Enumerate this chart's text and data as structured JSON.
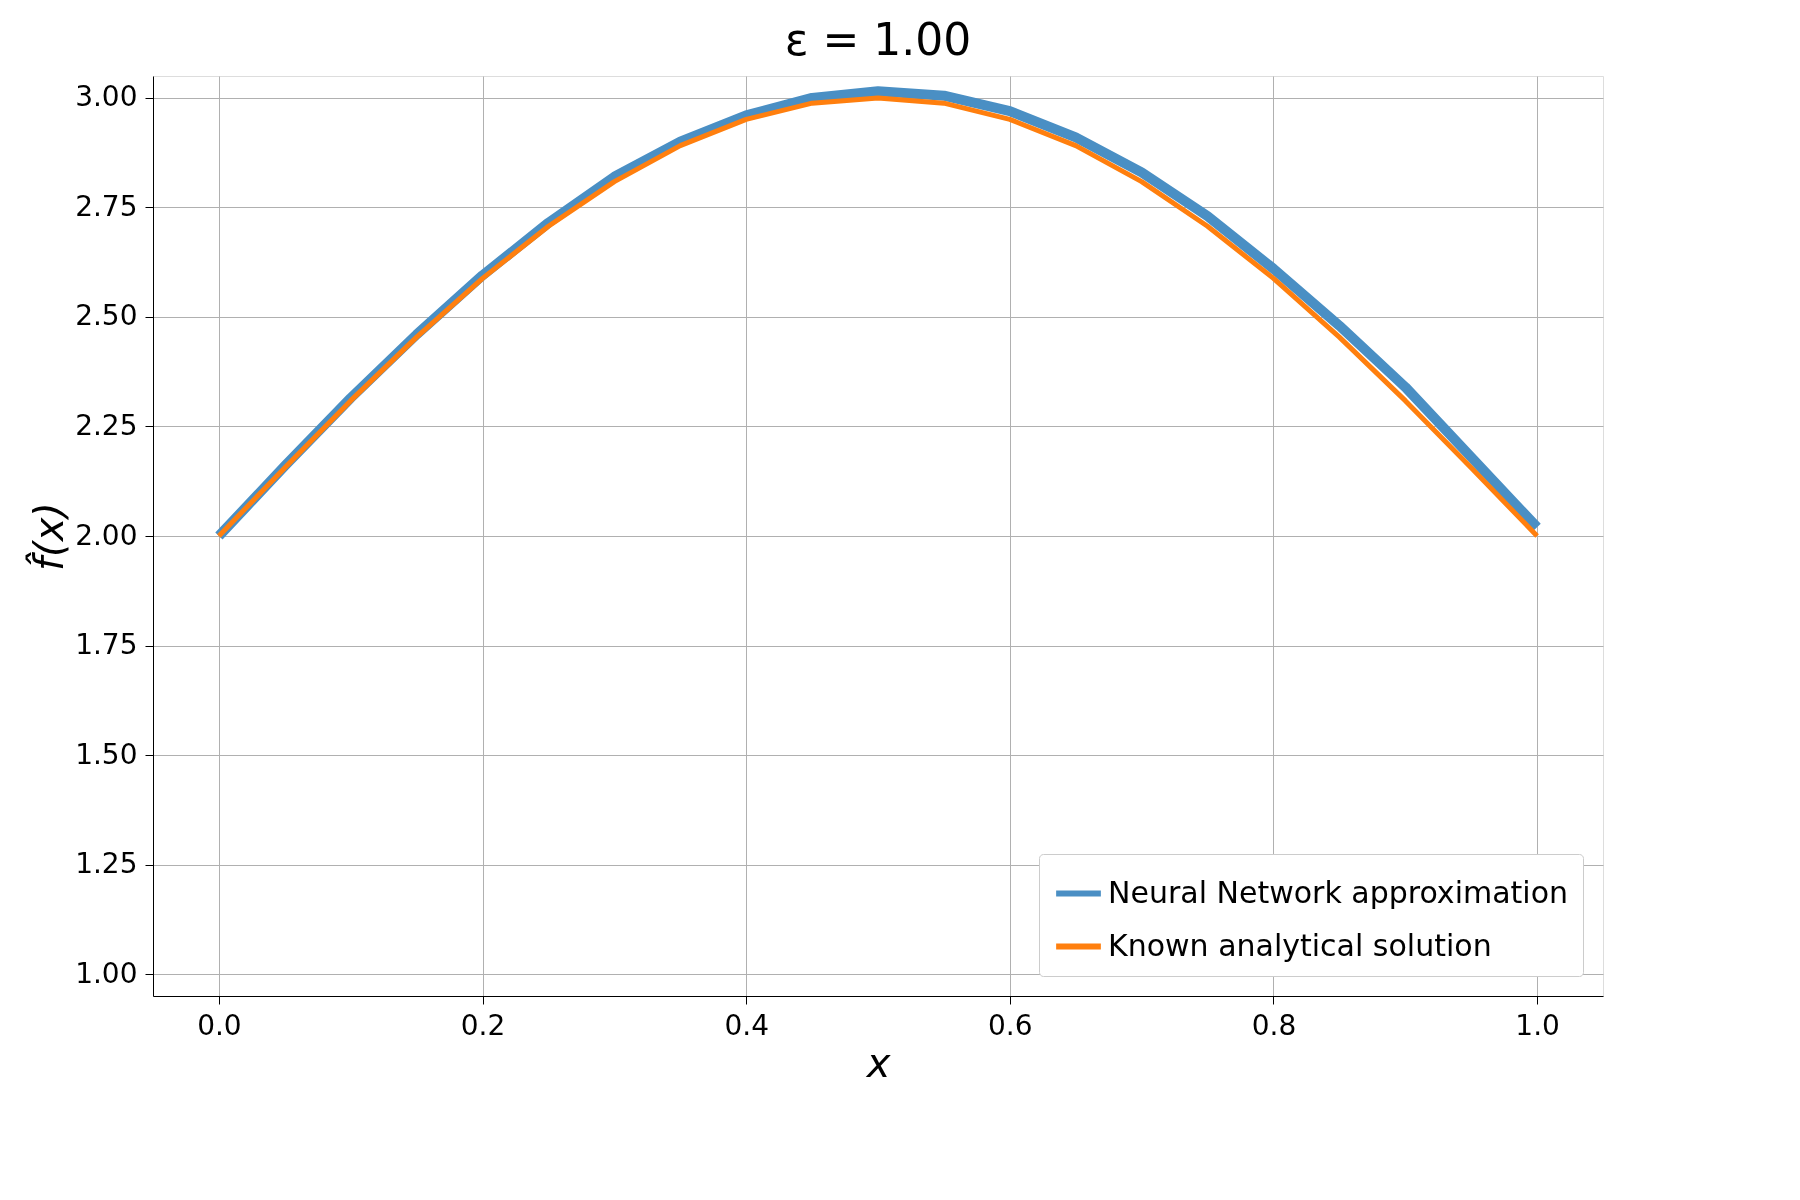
{
  "chart_data": {
    "type": "line",
    "title": "ε = 1.00",
    "xlabel": "x",
    "ylabel": "f̂(x)",
    "x": [
      0,
      0.05,
      0.1,
      0.15,
      0.2,
      0.25,
      0.3,
      0.35,
      0.4,
      0.45,
      0.5,
      0.55,
      0.6,
      0.65,
      0.7,
      0.75,
      0.8,
      0.85,
      0.9,
      0.95,
      1.0
    ],
    "series": [
      {
        "name": "Neural Network approximation",
        "color": "#4a8fc4",
        "values": [
          2.0,
          2.16,
          2.315,
          2.46,
          2.595,
          2.715,
          2.82,
          2.9,
          2.96,
          3.0,
          3.015,
          3.005,
          2.97,
          2.91,
          2.83,
          2.73,
          2.61,
          2.48,
          2.34,
          2.18,
          2.02
        ]
      },
      {
        "name": "Known analytical solution",
        "color": "#ff7f0e",
        "values": [
          2.0,
          2.156,
          2.309,
          2.454,
          2.588,
          2.707,
          2.809,
          2.891,
          2.951,
          2.988,
          3.0,
          2.988,
          2.951,
          2.891,
          2.809,
          2.707,
          2.588,
          2.454,
          2.309,
          2.156,
          2.0
        ]
      }
    ],
    "xlim": [
      -0.05,
      1.05
    ],
    "xticks": [
      {
        "value": 0,
        "label": "0.0"
      },
      {
        "value": 0.2,
        "label": "0.2"
      },
      {
        "value": 0.4,
        "label": "0.4"
      },
      {
        "value": 0.6,
        "label": "0.6"
      },
      {
        "value": 0.8,
        "label": "0.8"
      },
      {
        "value": 1.0,
        "label": "1.0"
      }
    ],
    "ylim": [
      0.95,
      3.05
    ],
    "yticks": [
      {
        "value": 1.0,
        "label": "1.00"
      },
      {
        "value": 1.25,
        "label": "1.25"
      },
      {
        "value": 1.5,
        "label": "1.50"
      },
      {
        "value": 1.75,
        "label": "1.75"
      },
      {
        "value": 2.0,
        "label": "2.00"
      },
      {
        "value": 2.25,
        "label": "2.25"
      },
      {
        "value": 2.5,
        "label": "2.50"
      },
      {
        "value": 2.75,
        "label": "2.75"
      },
      {
        "value": 3.0,
        "label": "3.00"
      }
    ],
    "grid": true,
    "legend": "bottom right",
    "line_style": "solid"
  }
}
